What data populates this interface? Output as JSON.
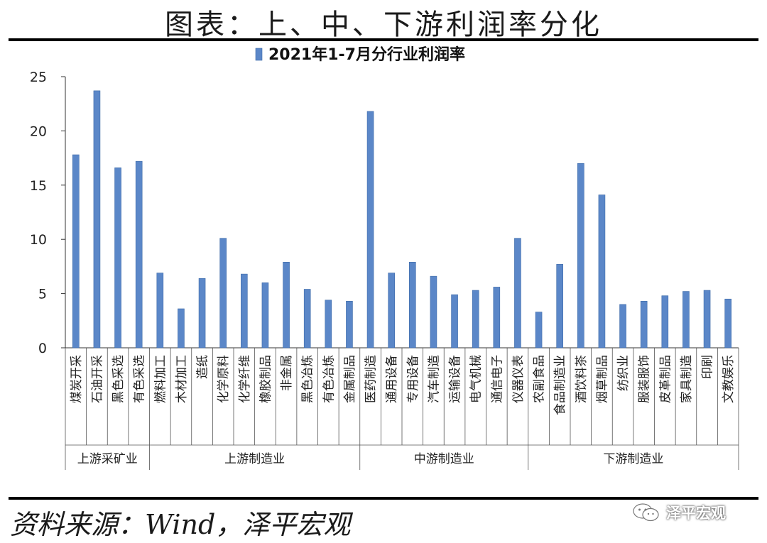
{
  "header": {
    "title": "图表：上、中、下游利润率分化"
  },
  "source": {
    "text": "资料来源：Wind，泽平宏观"
  },
  "watermark": {
    "text": "泽平宏观",
    "icon": "wechat-chat-icon"
  },
  "chart_data": {
    "type": "bar",
    "title": "",
    "legend": [
      "2021年1-7月分行业利润率"
    ],
    "legend_position": "top-center",
    "xlabel": "",
    "ylabel": "",
    "ylim": [
      0,
      25
    ],
    "yticks": [
      0,
      5,
      10,
      15,
      20,
      25
    ],
    "grid": false,
    "bar_color": "#5b87c8",
    "categories": [
      "煤炭开采",
      "石油开采",
      "黑色采选",
      "有色采选",
      "燃料加工",
      "木材加工",
      "造纸",
      "化学原料",
      "化学纤维",
      "橡胶制品",
      "非金属",
      "黑色冶炼",
      "有色冶炼",
      "金属制品",
      "医药制造",
      "通用设备",
      "专用设备",
      "汽车制造",
      "运输设备",
      "电气机械",
      "通信电子",
      "仪器仪表",
      "农副食品",
      "食品制造业",
      "酒饮料茶",
      "烟草制品",
      "纺织业",
      "服装服饰",
      "皮革制品",
      "家具制造",
      "印刷",
      "文教娱乐"
    ],
    "series": [
      {
        "name": "2021年1-7月分行业利润率",
        "values": [
          17.8,
          23.7,
          16.6,
          17.2,
          6.9,
          3.6,
          6.4,
          10.1,
          6.8,
          6.0,
          7.9,
          5.4,
          4.4,
          4.3,
          21.8,
          6.9,
          7.9,
          6.6,
          4.9,
          5.3,
          5.6,
          10.1,
          3.3,
          7.7,
          17.0,
          14.1,
          4.0,
          4.3,
          4.8,
          5.2,
          5.3,
          4.5
        ]
      }
    ],
    "groups": [
      {
        "label": "上游采矿业",
        "count": 4
      },
      {
        "label": "上游制造业",
        "count": 10
      },
      {
        "label": "中游制造业",
        "count": 8
      },
      {
        "label": "下游制造业",
        "count": 10
      }
    ]
  }
}
